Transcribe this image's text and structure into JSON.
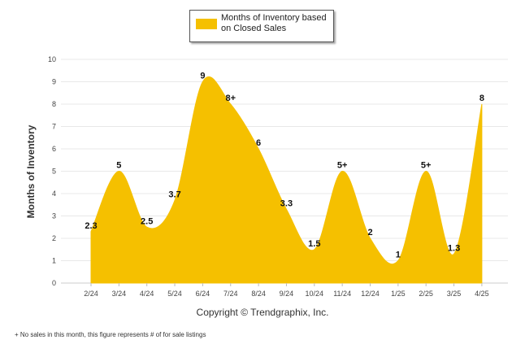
{
  "chart_data": {
    "type": "area",
    "x": [
      "2/24",
      "3/24",
      "4/24",
      "5/24",
      "6/24",
      "7/24",
      "8/24",
      "9/24",
      "10/24",
      "11/24",
      "12/24",
      "1/25",
      "2/25",
      "3/25",
      "4/25"
    ],
    "series": [
      {
        "name": "Months of Inventory based on Closed Sales",
        "values": [
          2.3,
          5,
          2.5,
          3.7,
          9,
          8,
          6,
          3.3,
          1.5,
          5,
          2,
          1,
          5,
          1.3,
          8
        ],
        "data_labels": [
          "2.3",
          "5",
          "2.5",
          "3.7",
          "9",
          "8+",
          "6",
          "3.3",
          "1.5",
          "5+",
          "2",
          "1",
          "5+",
          "1.3",
          "8"
        ]
      }
    ],
    "ylabel": "Months of Inventory",
    "ylim": [
      0,
      10
    ],
    "yticks": [
      0,
      1,
      2,
      3,
      4,
      5,
      6,
      7,
      8,
      9,
      10
    ],
    "grid": true,
    "legend_position": "top-center",
    "color": "#F5C000"
  },
  "copyright": "Copyright © Trendgraphix, Inc.",
  "footnote": "+  No sales in this month, this figure represents # of for sale listings"
}
